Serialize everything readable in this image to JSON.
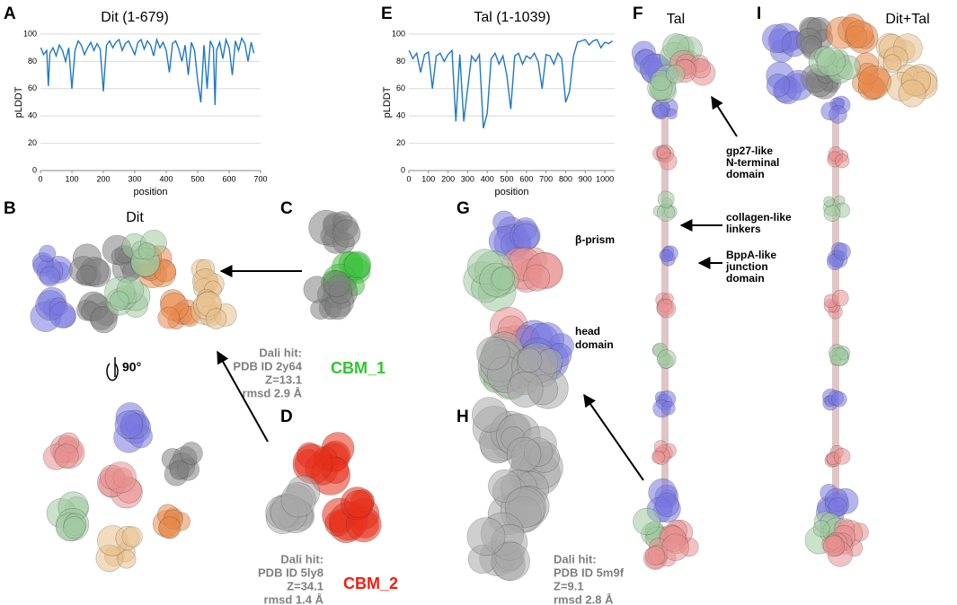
{
  "chart_data": [
    {
      "type": "line",
      "title": "Dit (1-679)",
      "xlabel": "position",
      "ylabel": "pLDDT",
      "color": "#1f77c8",
      "grid": true,
      "xlim": [
        0,
        700
      ],
      "xticks": [
        0,
        100,
        200,
        300,
        400,
        500,
        600,
        700
      ],
      "ylim": [
        0,
        100
      ],
      "yticks": [
        0,
        20,
        40,
        60,
        80,
        100
      ],
      "x": [
        1,
        10,
        20,
        25,
        30,
        40,
        50,
        60,
        70,
        80,
        90,
        100,
        110,
        120,
        130,
        140,
        150,
        160,
        170,
        180,
        190,
        200,
        210,
        220,
        230,
        240,
        250,
        260,
        270,
        280,
        290,
        300,
        310,
        320,
        330,
        340,
        350,
        360,
        370,
        380,
        390,
        400,
        410,
        420,
        430,
        440,
        450,
        460,
        470,
        480,
        490,
        500,
        510,
        520,
        530,
        540,
        550,
        555,
        560,
        570,
        580,
        590,
        600,
        610,
        620,
        630,
        640,
        650,
        660,
        670,
        679
      ],
      "values": [
        90,
        85,
        88,
        62,
        86,
        90,
        84,
        92,
        88,
        80,
        90,
        60,
        88,
        95,
        92,
        85,
        90,
        94,
        88,
        93,
        89,
        58,
        92,
        95,
        90,
        94,
        96,
        88,
        93,
        95,
        90,
        85,
        94,
        96,
        89,
        95,
        92,
        84,
        96,
        90,
        94,
        88,
        72,
        93,
        95,
        89,
        80,
        92,
        70,
        94,
        88,
        66,
        50,
        92,
        60,
        95,
        90,
        48,
        88,
        94,
        82,
        96,
        90,
        70,
        95,
        88,
        97,
        93,
        80,
        94,
        86
      ]
    },
    {
      "type": "line",
      "title": "Tal (1-1039)",
      "xlabel": "position",
      "ylabel": "pLDDT",
      "color": "#1f77c8",
      "grid": true,
      "xlim": [
        0,
        1050
      ],
      "xticks": [
        0,
        100,
        200,
        300,
        400,
        500,
        600,
        700,
        800,
        900,
        1000
      ],
      "ylim": [
        0,
        100
      ],
      "yticks": [
        0,
        20,
        40,
        60,
        80,
        100
      ],
      "x": [
        1,
        20,
        40,
        60,
        80,
        100,
        120,
        140,
        160,
        180,
        200,
        220,
        240,
        260,
        280,
        300,
        320,
        340,
        360,
        380,
        400,
        420,
        440,
        460,
        480,
        500,
        520,
        540,
        560,
        580,
        600,
        620,
        640,
        660,
        680,
        700,
        720,
        740,
        760,
        780,
        800,
        820,
        840,
        860,
        880,
        900,
        920,
        940,
        960,
        980,
        1000,
        1020,
        1039
      ],
      "values": [
        88,
        82,
        86,
        72,
        85,
        87,
        60,
        84,
        86,
        80,
        85,
        88,
        36,
        85,
        36,
        60,
        84,
        80,
        85,
        31,
        42,
        82,
        86,
        78,
        84,
        70,
        45,
        84,
        86,
        78,
        84,
        82,
        86,
        80,
        60,
        85,
        84,
        78,
        86,
        82,
        50,
        58,
        84,
        94,
        95,
        96,
        92,
        95,
        96,
        90,
        94,
        93,
        95
      ]
    }
  ],
  "panels": {
    "A": "A",
    "B": "B",
    "C": "C",
    "D": "D",
    "E": "E",
    "F": "F",
    "G": "G",
    "H": "H",
    "I": "I"
  },
  "structure_titles": {
    "dit": "Dit",
    "tal": "Tal",
    "dit_tal": "Dit+Tal"
  },
  "rotation": "90°",
  "dali_c": [
    "Dali hit:",
    "PDB ID 2y64",
    "Z=13.1",
    "rmsd 2.9 Å"
  ],
  "cbm1": "CBM_1",
  "dali_d": [
    "Dali hit:",
    "PDB ID 5ly8",
    "Z=34.1",
    "rmsd 1.4 Å"
  ],
  "cbm2": "CBM_2",
  "beta_prism": "β-prism",
  "head_domain": [
    "head",
    "domain"
  ],
  "dali_h": [
    "Dali hit:",
    "PDB ID 5m9f",
    "Z=9.1",
    "rmsd 2.8 Å"
  ],
  "gp27": [
    "gp27-like",
    "N-terminal",
    "domain"
  ],
  "collagen": [
    "collagen-like",
    "linkers"
  ],
  "bppa": [
    "BppA-like",
    "junction",
    "domain"
  ]
}
